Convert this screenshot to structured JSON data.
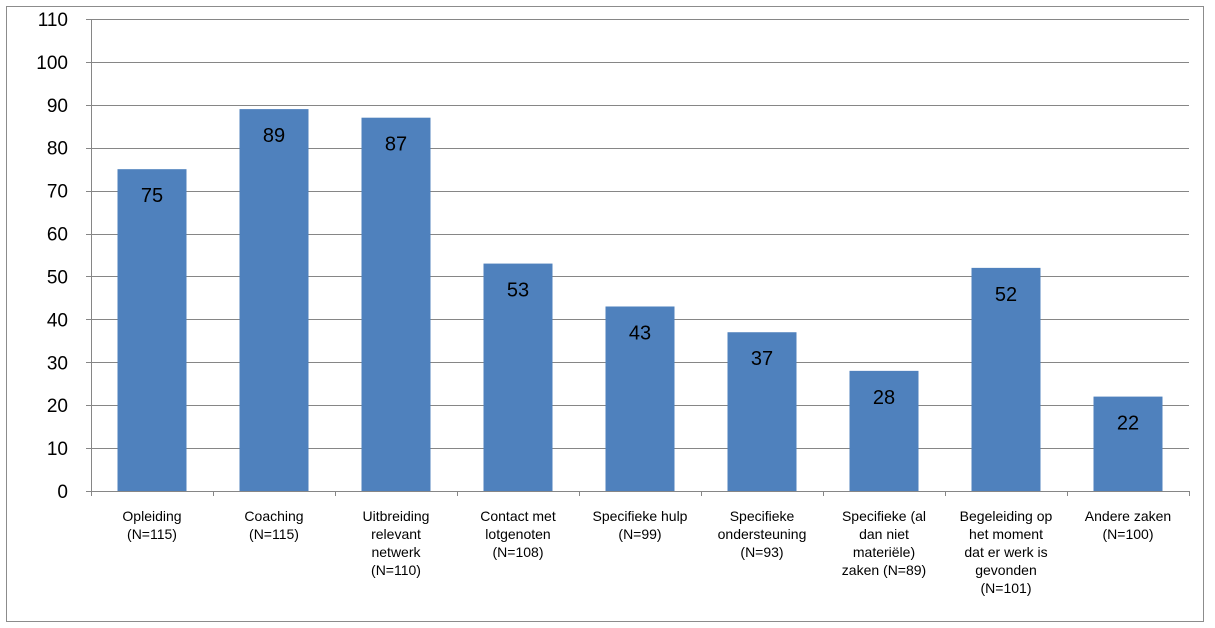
{
  "chart_data": {
    "type": "bar",
    "categories": [
      [
        "Opleiding",
        "(N=115)"
      ],
      [
        "Coaching",
        "(N=115)"
      ],
      [
        "Uitbreiding",
        "relevant",
        "netwerk",
        "(N=110)"
      ],
      [
        "Contact met",
        "lotgenoten",
        "(N=108)"
      ],
      [
        "Specifieke hulp",
        "(N=99)"
      ],
      [
        "Specifieke",
        "ondersteuning",
        "(N=93)"
      ],
      [
        "Specifieke (al",
        "dan niet",
        "materiële)",
        "zaken (N=89)"
      ],
      [
        "Begeleiding op",
        "het moment",
        "dat er werk is",
        "gevonden",
        "(N=101)"
      ],
      [
        "Andere zaken",
        "(N=100)"
      ]
    ],
    "values": [
      75,
      89,
      87,
      53,
      43,
      37,
      28,
      52,
      22
    ],
    "ylim": [
      0,
      110
    ],
    "yticks": [
      0,
      10,
      20,
      30,
      40,
      50,
      60,
      70,
      80,
      90,
      100,
      110
    ],
    "grid": true,
    "bar_color": "#4f81bd",
    "grid_color": "#868686"
  }
}
